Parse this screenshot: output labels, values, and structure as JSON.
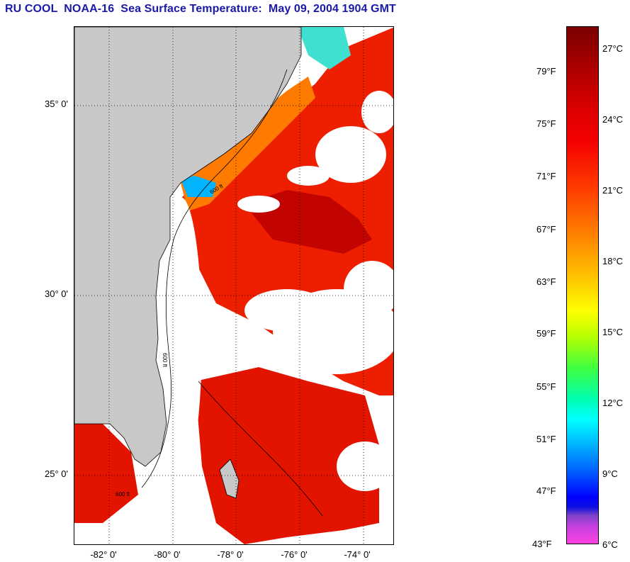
{
  "title": "RU COOL  NOAA-16  Sea Surface Temperature:  May 09, 2004 1904 GMT",
  "map": {
    "lat_labels": [
      "35° 0'",
      "30° 0'",
      "25° 0'"
    ],
    "lon_labels": [
      "-82° 0'",
      "-80° 0'",
      "-78° 0'",
      "-76° 0'",
      "-74° 0'"
    ],
    "contour_labels": [
      "600 ft",
      "600 ft",
      "600 ft"
    ],
    "colors": {
      "land": "#c8c8c8",
      "cloud": "#ffffff",
      "warm": "#ee2200",
      "hot": "#b80000",
      "cool": "#ff8800",
      "cold": "#00aaff"
    }
  },
  "colorbar": {
    "fahrenheit": [
      "79°F",
      "75°F",
      "71°F",
      "67°F",
      "63°F",
      "59°F",
      "55°F",
      "51°F",
      "47°F",
      "43°F"
    ],
    "celsius": [
      "27°C",
      "24°C",
      "21°C",
      "18°C",
      "15°C",
      "12°C",
      "9°C",
      "6°C"
    ]
  }
}
